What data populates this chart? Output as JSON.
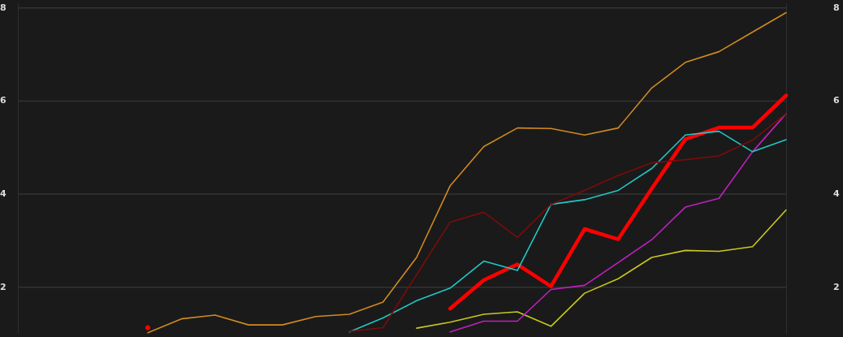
{
  "chart_data": {
    "type": "line",
    "categories": [
      null,
      null,
      null,
      null,
      null,
      null,
      null,
      null,
      null,
      null,
      null,
      null,
      null,
      null,
      null,
      null,
      null,
      null,
      null,
      null
    ],
    "ylim": [
      1.0,
      8.1
    ],
    "yticks": [
      2,
      4,
      6,
      8
    ],
    "y2lim": [
      1.0,
      8.1
    ],
    "y2ticks": [
      2,
      4,
      6,
      8
    ],
    "grid": "y",
    "legend": false,
    "marker": "none",
    "line_style": "solid",
    "series": [
      {
        "color": "#d08a20",
        "values": [
          1.02,
          1.32,
          1.4,
          1.19,
          1.19,
          1.37,
          1.42,
          1.68,
          2.64,
          4.18,
          5.02,
          5.42,
          5.41,
          5.27,
          5.42,
          6.28,
          6.83,
          7.06,
          7.48,
          7.9
        ]
      },
      {
        "color": "#7a0c0c",
        "values": [
          null,
          null,
          null,
          null,
          null,
          null,
          1.05,
          1.13,
          2.27,
          3.4,
          3.61,
          3.07,
          3.78,
          4.08,
          4.4,
          4.67,
          4.74,
          4.82,
          5.16,
          5.73
        ]
      },
      {
        "color": "#20c8c8",
        "values": [
          null,
          null,
          null,
          null,
          null,
          null,
          1.04,
          1.34,
          1.71,
          1.98,
          2.56,
          2.36,
          3.78,
          3.88,
          4.08,
          4.55,
          5.27,
          5.35,
          4.91,
          5.17
        ]
      },
      {
        "color": "#c020c0",
        "values": [
          null,
          null,
          null,
          null,
          null,
          null,
          null,
          null,
          null,
          1.04,
          1.27,
          1.27,
          1.95,
          2.04,
          2.53,
          3.02,
          3.72,
          3.91,
          4.91,
          5.73
        ]
      },
      {
        "color": "#c8c820",
        "values": [
          null,
          null,
          null,
          null,
          null,
          null,
          null,
          null,
          1.12,
          1.25,
          1.42,
          1.47,
          1.16,
          1.87,
          2.18,
          2.64,
          2.79,
          2.77,
          2.87,
          3.66
        ]
      },
      {
        "color": "#ff0000",
        "values": [
          1.13,
          null,
          null,
          null,
          null,
          null,
          null,
          null,
          null,
          1.54,
          2.15,
          2.49,
          2.02,
          3.25,
          3.03,
          4.12,
          5.18,
          5.43,
          5.43,
          6.12
        ]
      }
    ]
  }
}
